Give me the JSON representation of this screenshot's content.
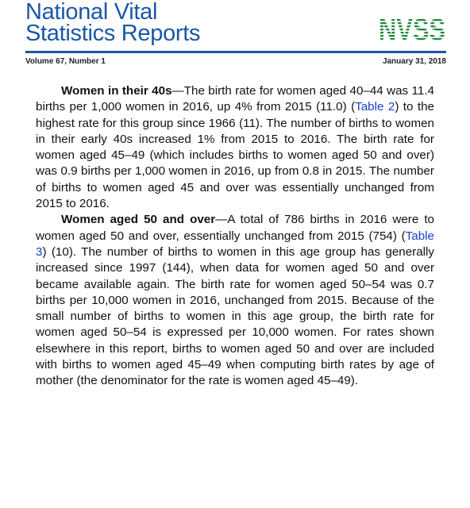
{
  "header": {
    "title_line1": "National Vital",
    "title_line2": "Statistics Reports",
    "logo_text": "NVSS",
    "colors": {
      "brand": "#1a57a8",
      "logo": "#1f8a3a",
      "link": "#1a3fc4"
    }
  },
  "meta": {
    "issue": "Volume 67, Number 1",
    "date": "January 31, 2018"
  },
  "paragraphs": [
    {
      "lead": "Women in their 40s",
      "t1": "—The birth rate for women aged 40–44 was 11.4 births per 1,000 women in 2016, up 4% from 2015 (11.0) (",
      "link": "Table 2",
      "t2": ") to the highest rate for this group since 1966 (11). The number of births to women in their early 40s increased 1% from 2015 to 2016. The birth rate for women aged 45–49 (which includes births to women aged 50 and over) was 0.9 births per 1,000 women in 2016, up from 0.8 in 2015. The number of births to women aged 45 and over was essentially unchanged from 2015 to 2016."
    },
    {
      "lead": "Women aged 50 and over",
      "t1": "—A total of 786 births in 2016 were to women aged 50 and over, essentially unchanged from 2015 (754) (",
      "link": "Table 3",
      "t2": ") (10). The number of births to women in this age group has generally increased since 1997 (144), when data for women aged 50 and over became available again. The birth rate for women aged 50–54 was 0.7 births per 10,000 women in 2016, unchanged from 2015. Because of the small number of births to women in this age group, the birth rate for women aged 50–54 is expressed per 10,000 women. For rates shown elsewhere in this report, births to women aged 50 and over are included with births to women aged 45–49 when computing birth rates by age of mother (the denominator for the rate is women aged 45–49)."
    }
  ]
}
